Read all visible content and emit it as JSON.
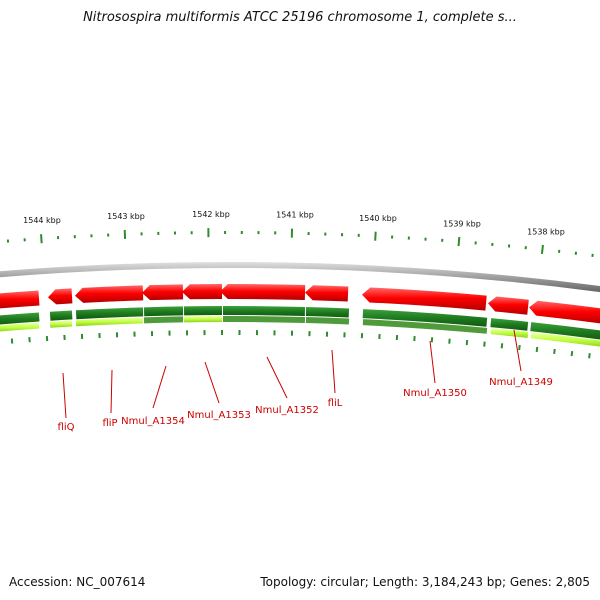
{
  "title": "Nitrosospira multiformis ATCC 25196 chromosome 1, complete s...",
  "accession": "Accession: NC_007614",
  "topology": "Topology: circular; Length: 3,184,243 bp; Genes: 2,805",
  "colors": {
    "gene_forward": "#e60000",
    "cds_forward": "#228b22",
    "backbone": "#888888",
    "tick": "#2e8b2e",
    "label": "#cc0000",
    "secondary_band": "#bfff40"
  },
  "ticks": [
    {
      "label": "1544 kbp"
    },
    {
      "label": "1543 kbp"
    },
    {
      "label": "1542 kbp"
    },
    {
      "label": "1541 kbp"
    },
    {
      "label": "1540 kbp"
    },
    {
      "label": "1539 kbp"
    },
    {
      "label": "1538 kbp"
    }
  ],
  "genes": [
    {
      "label": "fliQ"
    },
    {
      "label": "fliP"
    },
    {
      "label": "Nmul_A1354"
    },
    {
      "label": "Nmul_A1353"
    },
    {
      "label": "Nmul_A1352"
    },
    {
      "label": "fliL"
    },
    {
      "label": "Nmul_A1350"
    },
    {
      "label": "Nmul_A1349"
    }
  ]
}
